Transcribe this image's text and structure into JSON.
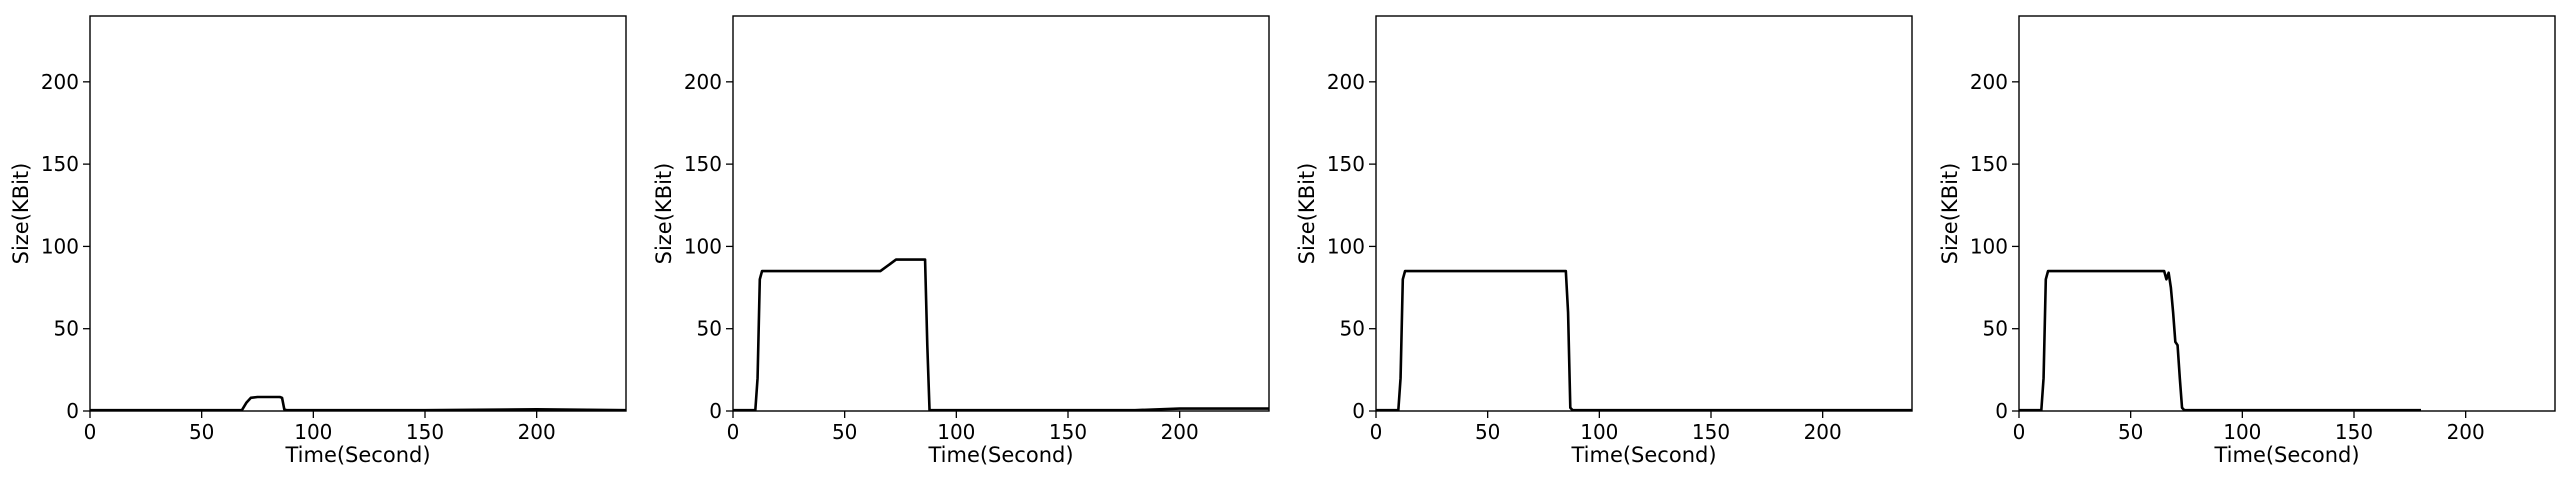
{
  "chart_data": [
    {
      "type": "line",
      "xlabel": "Time(Second)",
      "ylabel": "Size(KBit)",
      "xlim": [
        0,
        240
      ],
      "ylim": [
        0,
        240
      ],
      "xticks": [
        0,
        50,
        100,
        150,
        200
      ],
      "yticks": [
        0,
        50,
        100,
        150,
        200
      ],
      "grid": false,
      "series": [
        {
          "color": "#000000",
          "x": [
            0,
            68,
            70,
            72,
            75,
            80,
            85,
            86,
            87,
            88,
            150,
            200,
            240
          ],
          "y": [
            0.5,
            0.5,
            5,
            8,
            8.5,
            8.5,
            8.5,
            8,
            1,
            0.5,
            0.5,
            1,
            0.5
          ]
        }
      ]
    },
    {
      "type": "line",
      "xlabel": "Time(Second)",
      "ylabel": "Size(KBit)",
      "xlim": [
        0,
        240
      ],
      "ylim": [
        0,
        240
      ],
      "xticks": [
        0,
        50,
        100,
        150,
        200
      ],
      "yticks": [
        0,
        50,
        100,
        150,
        200
      ],
      "grid": false,
      "series": [
        {
          "color": "#000000",
          "x": [
            0,
            10,
            11,
            12,
            13,
            20,
            30,
            40,
            50,
            60,
            66,
            70,
            73,
            75,
            80,
            85,
            86,
            87,
            88,
            100,
            150,
            180,
            200,
            240
          ],
          "y": [
            0.5,
            0.5,
            20,
            80,
            85,
            85,
            85,
            85,
            85,
            85,
            85,
            89,
            92,
            92,
            92,
            92,
            92,
            40,
            0.5,
            0.5,
            0.5,
            0.5,
            1.5,
            1.5
          ]
        }
      ]
    },
    {
      "type": "line",
      "xlabel": "Time(Second)",
      "ylabel": "Size(KBit)",
      "xlim": [
        0,
        240
      ],
      "ylim": [
        0,
        240
      ],
      "xticks": [
        0,
        50,
        100,
        150,
        200
      ],
      "yticks": [
        0,
        50,
        100,
        150,
        200
      ],
      "grid": false,
      "series": [
        {
          "color": "#000000",
          "x": [
            0,
            10,
            11,
            12,
            13,
            20,
            30,
            40,
            50,
            60,
            70,
            80,
            85,
            86,
            87,
            88,
            100,
            150,
            200,
            240
          ],
          "y": [
            0.5,
            0.5,
            20,
            80,
            85,
            85,
            85,
            85,
            85,
            85,
            85,
            85,
            85,
            60,
            2,
            0.5,
            0.5,
            0.5,
            0.5,
            0.5
          ]
        }
      ]
    },
    {
      "type": "line",
      "xlabel": "Time(Second)",
      "ylabel": "Size(KBit)",
      "xlim": [
        0,
        240
      ],
      "ylim": [
        0,
        240
      ],
      "xticks": [
        0,
        50,
        100,
        150,
        200
      ],
      "yticks": [
        0,
        50,
        100,
        150,
        200
      ],
      "grid": false,
      "series": [
        {
          "color": "#000000",
          "x": [
            0,
            10,
            11,
            12,
            13,
            20,
            30,
            40,
            50,
            60,
            65,
            66,
            67,
            68,
            69,
            70,
            71,
            72,
            73,
            74,
            100,
            150,
            180
          ],
          "y": [
            0.5,
            0.5,
            20,
            80,
            85,
            85,
            85,
            85,
            85,
            85,
            85,
            80,
            84,
            75,
            60,
            42,
            40,
            20,
            2,
            0.5,
            0.5,
            0.5,
            0.5
          ]
        }
      ]
    }
  ]
}
